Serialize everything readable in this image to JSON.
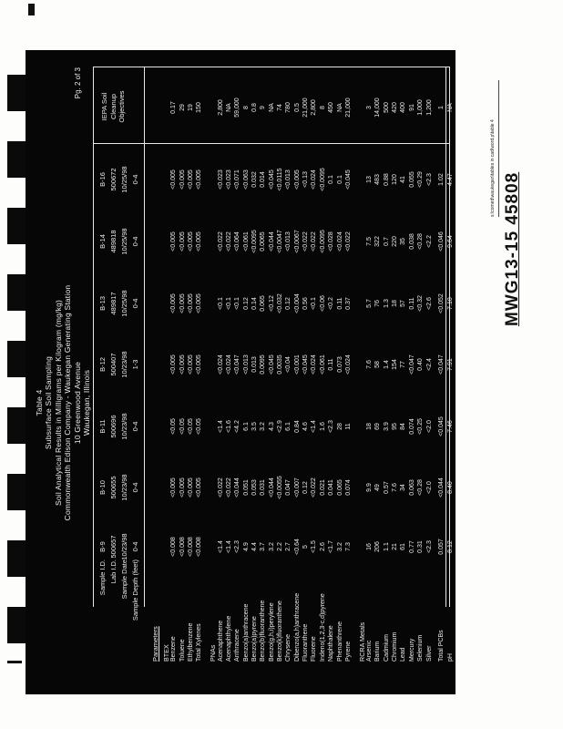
{
  "page": {
    "page_number": "Pg. 2 of 3",
    "stamp": "MWG13-15 45808",
    "side_note": "s:\\comed\\waukegan\\tables in cad\\word.p\\table 4",
    "title_lines": [
      "Table 4",
      "Subsurface Soil Sampling",
      "Soil Analytical Results in Milligrams per Kilogram (mg/kg)",
      "Commonwealth Edison Company - Waukegan Generating Station",
      "10 Greenwood Avenue",
      "Waukegan, Illinois"
    ]
  },
  "table": {
    "header_labels": [
      "Sample I.D.",
      "Lab I.D.",
      "Sample Date",
      "Sample Depth (feet)"
    ],
    "columns": [
      {
        "id": "B-9",
        "lab_id": "500657",
        "date": "10/23/98",
        "depth": "0-4"
      },
      {
        "id": "B-10",
        "lab_id": "500655",
        "date": "10/23/98",
        "depth": "0-4"
      },
      {
        "id": "B-11",
        "lab_id": "500696",
        "date": "10/23/98",
        "depth": "0-4"
      },
      {
        "id": "B-12",
        "lab_id": "500407",
        "date": "10/23/98",
        "depth": "1-3"
      },
      {
        "id": "B-13",
        "lab_id": "489817",
        "date": "10/25/98",
        "depth": "0-4"
      },
      {
        "id": "B-14",
        "lab_id": "489818",
        "date": "10/25/98",
        "depth": "0-4"
      },
      {
        "id": "B-16",
        "lab_id": "500672",
        "date": "10/25/98",
        "depth": "0-4"
      }
    ],
    "objectives_header": [
      "IEPA Soil",
      "Cleanup",
      "Objectives"
    ],
    "parameters_label": "Parameters",
    "sections": [
      {
        "name": "BTEX",
        "rows": [
          {
            "name": "Benzene",
            "values": [
              "<0.008",
              "<0.005",
              "<0.05",
              "<0.005",
              "<0.005",
              "<0.005",
              "<0.005",
              "0.17"
            ]
          },
          {
            "name": "Toluene",
            "values": [
              "<0.008",
              "<0.005",
              "<0.05",
              "<0.005",
              "<0.005",
              "<0.005",
              "<0.005",
              "29"
            ]
          },
          {
            "name": "Ethylbenzene",
            "values": [
              "<0.008",
              "<0.005",
              "<0.05",
              "<0.005",
              "<0.005",
              "<0.005",
              "<0.005",
              "19"
            ]
          },
          {
            "name": "Total Xylenes",
            "values": [
              "<0.008",
              "<0.005",
              "<0.05",
              "<0.005",
              "<0.005",
              "<0.005",
              "<0.005",
              "150"
            ]
          }
        ]
      },
      {
        "name": "PNAs",
        "rows": [
          {
            "name": "Acenaphthene",
            "values": [
              "<1.4",
              "<0.022",
              "<1.4",
              "<0.024",
              "<0.1",
              "<0.022",
              "<0.023",
              "2,800"
            ]
          },
          {
            "name": "Acenaphthylene",
            "values": [
              "<1.4",
              "<0.022",
              "<1.6",
              "<0.024",
              "<0.1",
              "<0.022",
              "<0.023",
              "NA"
            ]
          },
          {
            "name": "Anthracene",
            "values": [
              "<2.3",
              "<0.044",
              "<4.2",
              "<0.047",
              "<0.1",
              "<0.064",
              "<0.071",
              "59,000"
            ]
          },
          {
            "name": "Benzo(a)anthracene",
            "values": [
              "4.9",
              "0.051",
              "6.1",
              "<0.013",
              "0.12",
              "<0.061",
              "<0.063",
              "8"
            ]
          },
          {
            "name": "Benzo(a)pyrene",
            "values": [
              "4.4",
              "0.053",
              "3.5",
              "0.013",
              "0.14",
              "<0.0095",
              "0.032",
              "0.8"
            ]
          },
          {
            "name": "Benzo(b)fluoranthene",
            "values": [
              "3.7",
              "0.031",
              "3.2",
              "0.0095",
              "0.065",
              "0.0065",
              "0.014",
              "9"
            ]
          },
          {
            "name": "Benzo(g,h,i)perylene",
            "values": [
              "3.2",
              "<0.044",
              "4.3",
              "<0.045",
              "<0.12",
              "<0.044",
              "<0.045",
              "NA"
            ]
          },
          {
            "name": "Benzo(k)fluoranthene",
            "values": [
              "2.2",
              "<0.0055",
              "<2.9",
              "0.0035",
              "<0.032",
              "<0.0047",
              "<0.0115",
              "74"
            ]
          },
          {
            "name": "Chrysene",
            "values": [
              "2.7",
              "0.047",
              "6.1",
              "<0.04",
              "0.12",
              "<0.013",
              "<0.013",
              "780"
            ]
          },
          {
            "name": "Dibenzo(a,h)anthracene",
            "values": [
              "<0.64",
              "<0.007",
              "0.84",
              "<0.001",
              "<0.004",
              "<0.0067",
              "<0.005",
              "0.5"
            ]
          },
          {
            "name": "Fluoranthene",
            "values": [
              "5",
              "0.12",
              "4.6",
              "<0.045",
              "0.56",
              "<0.022",
              "<0.13",
              "21,000"
            ]
          },
          {
            "name": "Fluorene",
            "values": [
              "<1.5",
              "<0.022",
              "<1.4",
              "<0.024",
              "<0.1",
              "<0.022",
              "<0.024",
              "2,800"
            ]
          },
          {
            "name": "Indeno(1,2,3-c,d)pyrene",
            "values": [
              "2.6",
              "0.021",
              "1.6",
              "<0.061",
              "<0.06",
              "<0.0095",
              "<0.0095",
              "8"
            ]
          },
          {
            "name": "Naphthalene",
            "values": [
              "<1.7",
              "0.041",
              "<2.3",
              "0.11",
              "<0.2",
              "<0.028",
              "0.1",
              "450"
            ]
          },
          {
            "name": "Phenanthrene",
            "values": [
              "3.2",
              "0.065",
              "28",
              "0.073",
              "0.11",
              "<0.024",
              "0.1",
              "NA"
            ]
          },
          {
            "name": "Pyrene",
            "values": [
              "7.3",
              "0.074",
              "11",
              "<0.024",
              "0.37",
              "<0.022",
              "<0.045",
              "21,000"
            ]
          }
        ]
      },
      {
        "name": "RCRA Metals",
        "rows": [
          {
            "name": "Arsenic",
            "values": [
              "16",
              "9.9",
              "18",
              "7.6",
              "5.7",
              "7.5",
              "13",
              "3"
            ]
          },
          {
            "name": "Barium",
            "values": [
              "206",
              "49",
              "69",
              "58",
              "76",
              "322",
              "483",
              "14,000"
            ]
          },
          {
            "name": "Cadmium",
            "values": [
              "1.1",
              "0.57",
              "3.9",
              "1.4",
              "1.3",
              "0.7",
              "0.88",
              "500"
            ]
          },
          {
            "name": "Chromium",
            "values": [
              "21",
              "7.6",
              "95",
              "154",
              "18",
              "220",
              "120",
              "420"
            ]
          },
          {
            "name": "Lead",
            "values": [
              "61",
              "34",
              "84",
              "77",
              "57",
              "35",
              "41",
              "400"
            ]
          },
          {
            "name": "Mercury",
            "values": [
              "0.77",
              "0.063",
              "0.074",
              "<0.047",
              "0.11",
              "0.038",
              "0.055",
              "91"
            ]
          },
          {
            "name": "Selenium",
            "values": [
              "0.31",
              "<0.28",
              "<0.25",
              "0.40",
              "<0.32",
              "<0.28",
              "<0.29",
              "1,000"
            ]
          },
          {
            "name": "Silver",
            "values": [
              "<2.3",
              "<2.0",
              "<2.0",
              "<2.4",
              "<2.6",
              "<2.2",
              "<2.3",
              "1,200"
            ]
          }
        ]
      },
      {
        "name": "",
        "rows": [
          {
            "name": "Total PCBs",
            "values": [
              "0.057",
              "<0.044",
              "<0.045",
              "<0.047",
              "<0.052",
              "<0.046",
              "1.02",
              "1"
            ]
          },
          {
            "name": "pH",
            "values": [
              "8.12",
              "8.40",
              "7.46",
              "7.91",
              "7.10",
              "9.64",
              "4.47",
              "NA"
            ]
          }
        ]
      }
    ]
  }
}
